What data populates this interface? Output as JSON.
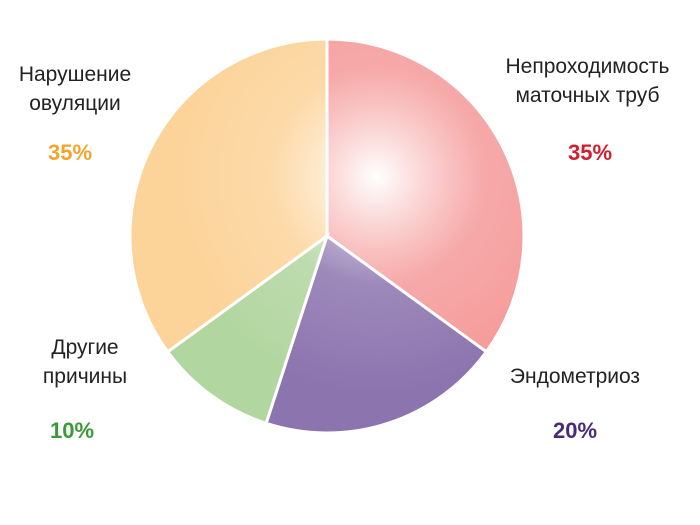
{
  "chart_data": {
    "type": "pie",
    "categories": [
      "Непроходимость маточных труб",
      "Эндометриоз",
      "Другие причины",
      "Нарушение овуляции"
    ],
    "values": [
      35,
      20,
      10,
      35
    ],
    "value_labels": [
      "35%",
      "20%",
      "10%",
      "35%"
    ],
    "colors": [
      "#f59a9a",
      "#8c74ae",
      "#b2d6a0",
      "#fcd398"
    ],
    "label_colors": [
      "#d11f30",
      "#4a2a78",
      "#3a9a3a",
      "#f4a42a"
    ]
  }
}
